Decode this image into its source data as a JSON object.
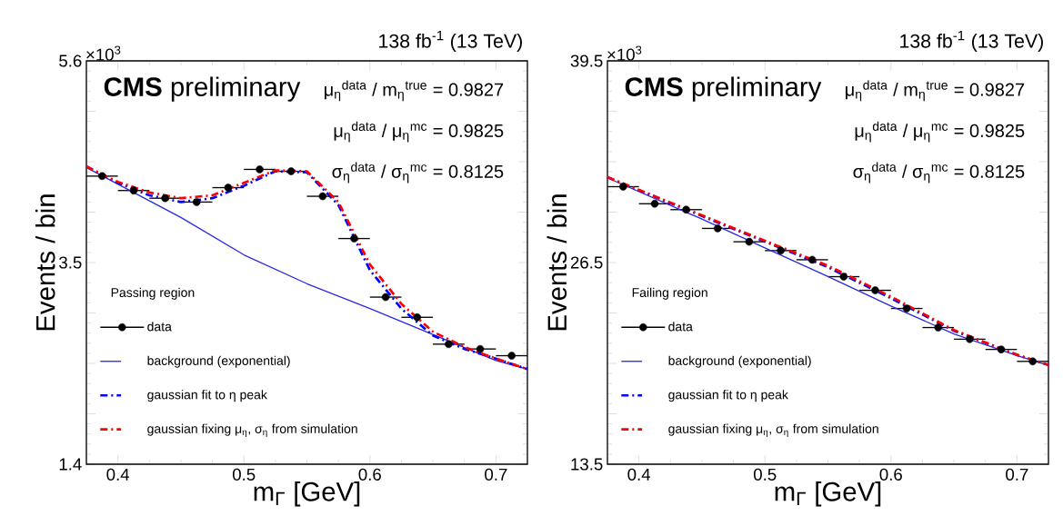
{
  "chart_data": [
    {
      "type": "line",
      "title": "138 fb$^{-1}$ (13 TeV)",
      "xlabel": "m$_{Γ}$ [GeV]",
      "ylabel": "Events / bin",
      "legend_title": "Passing region",
      "annotations": [
        "×10$^{3}$",
        "**CMS** preliminary",
        "μ$_{η}$$^{data}$ / m$_{η}$$^{true}$ = 0.9827",
        "μ$_{η}$$^{data}$ / μ$_{η}$$^{mc}$ = 0.9825",
        "σ$_{η}$$^{data}$ / σ$_{η}$$^{mc}$ = 0.8125"
      ],
      "xlim": [
        0.375,
        0.725
      ],
      "ylim": [
        1.4,
        5.6
      ],
      "xticks": [
        0.4,
        0.5,
        0.6,
        0.7
      ],
      "yticks": [
        1.4,
        {
          "value": 1.925,
          "label": null
        },
        {
          "value": 2.45,
          "label": null
        },
        {
          "value": 2.975,
          "label": null
        },
        3.5,
        {
          "value": 4.025,
          "label": null
        },
        {
          "value": 4.55,
          "label": null
        },
        {
          "value": 5.075,
          "label": null
        },
        5.6
      ],
      "legend": "bottom left",
      "series": [
        {
          "name": "data",
          "type": "scatter",
          "marker": "circle",
          "color": "#000000",
          "x": [
            0.3875,
            0.4125,
            0.4375,
            0.4625,
            0.4875,
            0.5125,
            0.5375,
            0.5625,
            0.5875,
            0.6125,
            0.6375,
            0.6625,
            0.6875,
            0.7125
          ],
          "values": [
            4.4,
            4.25,
            4.17,
            4.13,
            4.28,
            4.47,
            4.45,
            4.19,
            3.75,
            3.14,
            2.93,
            2.65,
            2.6,
            2.53
          ],
          "errors": [
            0.03,
            0.03,
            0.03,
            0.03,
            0.03,
            0.03,
            0.03,
            0.03,
            0.03,
            0.03,
            0.03,
            0.03,
            0.03,
            0.03
          ],
          "xerrors": [
            0.0125,
            0.0125,
            0.0125,
            0.0125,
            0.0125,
            0.0125,
            0.0125,
            0.0125,
            0.0125,
            0.0125,
            0.0125,
            0.0125,
            0.0125,
            0.0125
          ]
        },
        {
          "name": "background (exponential)",
          "line_style": "solid",
          "color": "#2a2ae0",
          "x": [
            0.375,
            0.45,
            0.5,
            0.55,
            0.6,
            0.65,
            0.7,
            0.725
          ],
          "values": [
            4.49,
            3.97,
            3.58,
            3.28,
            3.02,
            2.75,
            2.48,
            2.39
          ]
        },
        {
          "name": "gaussian fit to η peak",
          "line_style": "dashdot",
          "color": "#0000ff",
          "x": [
            0.375,
            0.4,
            0.425,
            0.45,
            0.475,
            0.5,
            0.525,
            0.55,
            0.575,
            0.6,
            0.625,
            0.65,
            0.675,
            0.7,
            0.725
          ],
          "values": [
            4.5,
            4.33,
            4.2,
            4.13,
            4.17,
            4.3,
            4.45,
            4.44,
            4.1,
            3.42,
            3.02,
            2.74,
            2.6,
            2.5,
            2.39
          ]
        },
        {
          "name": "gaussian fixing μ$_{η}$, σ$_{η}$ from simulation",
          "line_style": "dashdot",
          "color": "#ff0000",
          "x": [
            0.375,
            0.4,
            0.425,
            0.45,
            0.475,
            0.5,
            0.525,
            0.55,
            0.575,
            0.6,
            0.625,
            0.65,
            0.675,
            0.7,
            0.725
          ],
          "values": [
            4.5,
            4.34,
            4.23,
            4.17,
            4.2,
            4.33,
            4.46,
            4.45,
            4.13,
            3.48,
            3.07,
            2.78,
            2.62,
            2.5,
            2.39
          ]
        }
      ]
    },
    {
      "type": "line",
      "title": "138 fb$^{-1}$ (13 TeV)",
      "xlabel": "m$_{Γ}$ [GeV]",
      "ylabel": "Events / bin",
      "legend_title": "Failing region",
      "annotations": [
        "×10$^{3}$",
        "**CMS** preliminary",
        "μ$_{η}$$^{data}$ / m$_{η}$$^{true}$ = 0.9827",
        "μ$_{η}$$^{data}$ / μ$_{η}$$^{mc}$ = 0.9825",
        "σ$_{η}$$^{data}$ / σ$_{η}$$^{mc}$ = 0.8125"
      ],
      "xlim": [
        0.375,
        0.725
      ],
      "ylim": [
        13.5,
        39.5
      ],
      "xticks": [
        0.4,
        0.5,
        0.6,
        0.7
      ],
      "yticks": [
        13.5,
        {
          "value": 16.75,
          "label": null
        },
        {
          "value": 20.0,
          "label": null
        },
        {
          "value": 23.25,
          "label": null
        },
        26.5,
        {
          "value": 29.75,
          "label": null
        },
        {
          "value": 33.0,
          "label": null
        },
        {
          "value": 36.25,
          "label": null
        },
        39.5
      ],
      "legend": "bottom left",
      "series": [
        {
          "name": "data",
          "type": "scatter",
          "marker": "circle",
          "color": "#000000",
          "x": [
            0.3875,
            0.4125,
            0.4375,
            0.4625,
            0.4875,
            0.5125,
            0.5375,
            0.5625,
            0.5875,
            0.6125,
            0.6375,
            0.6625,
            0.6875,
            0.7125
          ],
          "values": [
            31.39,
            30.29,
            29.91,
            28.7,
            27.84,
            27.27,
            26.68,
            25.59,
            24.71,
            23.54,
            22.31,
            21.56,
            20.9,
            20.13
          ],
          "errors": [
            0.2,
            0.2,
            0.2,
            0.2,
            0.2,
            0.2,
            0.2,
            0.2,
            0.2,
            0.2,
            0.2,
            0.2,
            0.2,
            0.2
          ],
          "xerrors": [
            0.0125,
            0.0125,
            0.0125,
            0.0125,
            0.0125,
            0.0125,
            0.0125,
            0.0125,
            0.0125,
            0.0125,
            0.0125,
            0.0125,
            0.0125,
            0.0125
          ]
        },
        {
          "name": "background (exponential)",
          "line_style": "solid",
          "color": "#2a2ae0",
          "x": [
            0.375,
            0.45,
            0.5,
            0.55,
            0.6,
            0.65,
            0.7,
            0.725
          ],
          "values": [
            31.96,
            29.3,
            27.45,
            25.6,
            23.7,
            21.9,
            20.5,
            19.87
          ]
        },
        {
          "name": "gaussian fit to η peak",
          "line_style": "dashdot",
          "color": "#0000ff",
          "x": [
            0.375,
            0.45,
            0.5,
            0.55,
            0.6,
            0.65,
            0.7,
            0.725
          ],
          "values": [
            32.0,
            29.5,
            27.85,
            26.2,
            24.2,
            22.1,
            20.55,
            19.9
          ]
        },
        {
          "name": "gaussian fixing μ$_{η}$, σ$_{η}$ from simulation",
          "line_style": "dashdot",
          "color": "#ff0000",
          "x": [
            0.375,
            0.45,
            0.5,
            0.55,
            0.6,
            0.65,
            0.7,
            0.725
          ],
          "values": [
            32.0,
            29.55,
            27.9,
            26.3,
            24.3,
            22.15,
            20.55,
            19.9
          ]
        }
      ]
    }
  ]
}
